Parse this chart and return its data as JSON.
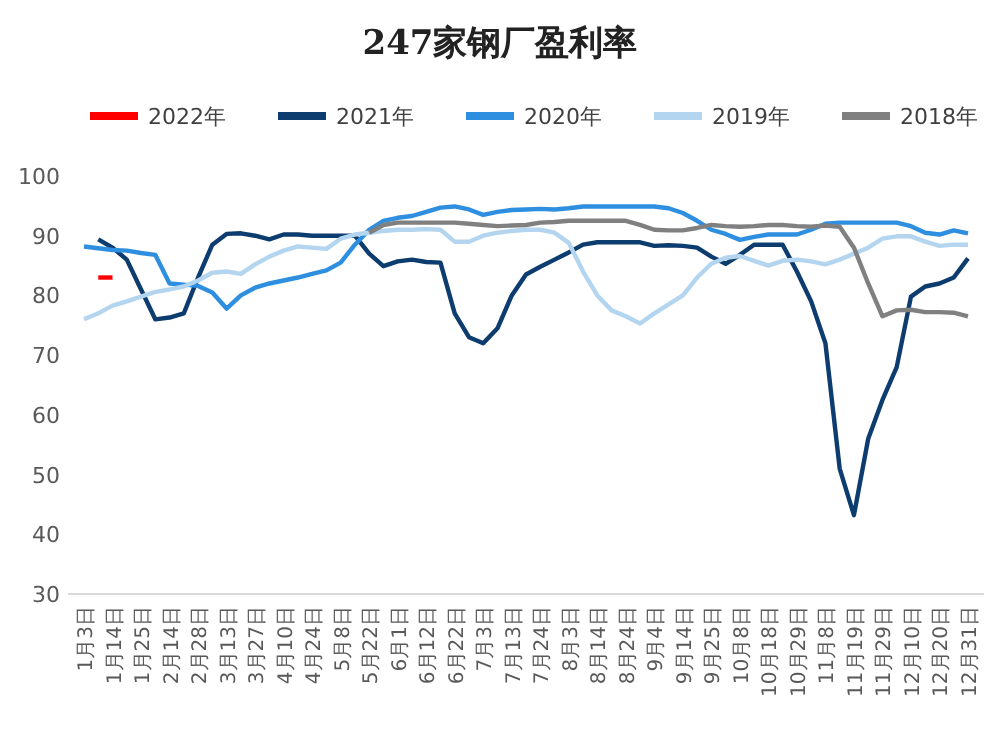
{
  "chart_data": {
    "type": "line",
    "title": "247家钢厂盈利率",
    "categories": [
      "1月3日",
      null,
      "1月14日",
      null,
      "1月25日",
      null,
      "2月14日",
      null,
      "2月28日",
      null,
      "3月13日",
      null,
      "3月27日",
      null,
      "4月10日",
      null,
      "4月24日",
      null,
      "5月8日",
      null,
      "5月22日",
      null,
      "6月1日",
      null,
      "6月12日",
      null,
      "6月22日",
      null,
      "7月3日",
      null,
      "7月13日",
      null,
      "7月24日",
      null,
      "8月3日",
      null,
      "8月14日",
      null,
      "8月24日",
      null,
      "9月4日",
      null,
      "9月14日",
      null,
      "9月25日",
      null,
      "10月8日",
      null,
      "10月18日",
      null,
      "10月29日",
      null,
      "11月8日",
      null,
      "11月19日",
      null,
      "11月29日",
      null,
      "12月10日",
      null,
      "12月20日",
      null,
      "12月31日"
    ],
    "series": [
      {
        "name": "2022年",
        "color": "#ff0000",
        "values": [
          null,
          83,
          83,
          null,
          null,
          null,
          null,
          null,
          null,
          null,
          null,
          null,
          null,
          null,
          null,
          null,
          null,
          null,
          null,
          null,
          null,
          null,
          null,
          null,
          null,
          null,
          null,
          null,
          null,
          null,
          null,
          null,
          null,
          null,
          null,
          null,
          null,
          null,
          null,
          null,
          null,
          null,
          null,
          null,
          null,
          null,
          null,
          null,
          null,
          null,
          null,
          null,
          null,
          null,
          null,
          null,
          null,
          null,
          null,
          null,
          null,
          null,
          null
        ]
      },
      {
        "name": "2021年",
        "color": "#0d3c6e",
        "values": [
          null,
          89.4,
          88,
          86,
          81,
          76,
          76.3,
          77,
          83,
          88.5,
          90.3,
          90.4,
          90,
          89.4,
          90.2,
          90.2,
          90,
          90,
          90,
          90,
          87,
          84.9,
          85.7,
          86,
          85.6,
          85.5,
          77,
          73,
          72,
          74.5,
          80,
          83.5,
          84.8,
          86,
          87.2,
          88.5,
          88.9,
          88.9,
          88.9,
          88.9,
          88.3,
          88.4,
          88.3,
          88,
          86.5,
          85.3,
          86.8,
          88.5,
          88.5,
          88.5,
          84,
          79,
          72,
          51,
          43.2,
          56,
          62.5,
          68,
          79.8,
          81.5,
          82,
          83,
          86.2
        ]
      },
      {
        "name": "2020年",
        "color": "#2e8fe0",
        "values": [
          88.2,
          87.9,
          87.6,
          87.5,
          87.1,
          86.8,
          82,
          81.8,
          81.6,
          80.5,
          77.8,
          80,
          81.3,
          82,
          82.5,
          83,
          83.6,
          84.2,
          85.5,
          88.5,
          91,
          92.5,
          93,
          93.3,
          94,
          94.7,
          94.9,
          94.4,
          93.5,
          94,
          94.3,
          94.4,
          94.5,
          94.4,
          94.6,
          94.9,
          94.9,
          94.9,
          94.9,
          94.9,
          94.9,
          94.6,
          93.8,
          92.5,
          91,
          90.3,
          89.3,
          89.8,
          90.2,
          90.2,
          90.2,
          91,
          92,
          92.2,
          92.2,
          92.2,
          92.2,
          92.2,
          91.6,
          90.5,
          90.2,
          90.9,
          90.4
        ]
      },
      {
        "name": "2019年",
        "color": "#b4d5f0",
        "values": [
          76,
          77,
          78.3,
          79,
          79.8,
          80.6,
          81,
          81.5,
          82.5,
          83.8,
          84,
          83.6,
          85.2,
          86.5,
          87.5,
          88.2,
          88,
          87.8,
          89.5,
          90.2,
          90.5,
          90.8,
          91,
          91,
          91.1,
          91,
          89,
          89,
          90,
          90.5,
          90.8,
          91,
          91,
          90.5,
          88.8,
          84,
          80,
          77.5,
          76.5,
          75.3,
          77,
          78.5,
          80,
          83,
          85.3,
          86.3,
          86.6,
          85.8,
          85,
          85.8,
          86,
          85.7,
          85.2,
          86,
          87,
          88,
          89.5,
          89.9,
          89.9,
          89,
          88.3,
          88.5,
          88.5
        ]
      },
      {
        "name": "2018年",
        "color": "#808080",
        "values": [
          null,
          null,
          null,
          null,
          null,
          null,
          null,
          null,
          null,
          null,
          null,
          null,
          null,
          null,
          null,
          null,
          null,
          null,
          null,
          null,
          90.5,
          91.8,
          92.2,
          92.2,
          92.2,
          92.2,
          92.2,
          92,
          91.8,
          91.6,
          91.7,
          91.8,
          92.2,
          92.3,
          92.5,
          92.5,
          92.5,
          92.5,
          92.5,
          91.8,
          91,
          90.9,
          90.9,
          91.3,
          91.8,
          91.6,
          91.5,
          91.6,
          91.8,
          91.8,
          91.6,
          91.5,
          91.7,
          91.5,
          88,
          82,
          76.5,
          77.5,
          77.6,
          77.2,
          77.2,
          77.1,
          76.5
        ]
      }
    ],
    "ylim": [
      30,
      100
    ],
    "yticks": [
      30,
      40,
      50,
      60,
      70,
      80,
      90,
      100
    ],
    "legend": "top",
    "marker": "none",
    "line_style": "solid",
    "grid": false
  }
}
